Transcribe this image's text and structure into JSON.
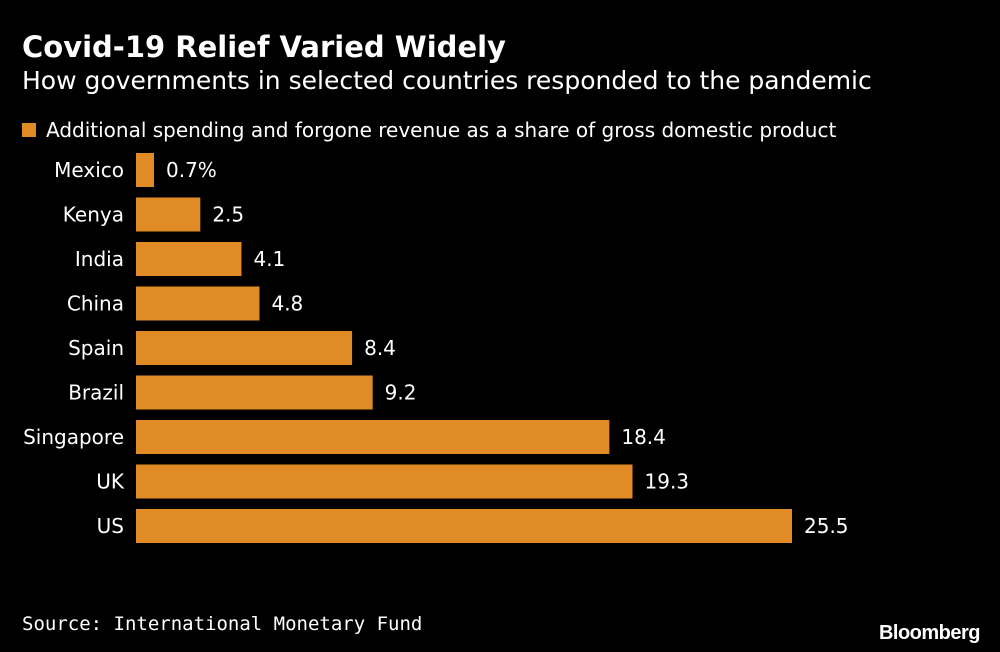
{
  "colors": {
    "background": "#000000",
    "bar": "#e08b26",
    "text": "#ffffff"
  },
  "chart_data": {
    "type": "bar",
    "orientation": "horizontal",
    "title": "Covid-19 Relief Varied Widely",
    "subtitle": "How governments in selected countries responded to the pandemic",
    "legend": {
      "position": "top-left",
      "entries": [
        "Additional spending and forgone revenue as a share of gross domestic product"
      ]
    },
    "categories": [
      "Mexico",
      "Kenya",
      "India",
      "China",
      "Spain",
      "Brazil",
      "Singapore",
      "UK",
      "US"
    ],
    "values": [
      0.7,
      2.5,
      4.1,
      4.8,
      8.4,
      9.2,
      18.4,
      19.3,
      25.5
    ],
    "data_labels": [
      "0.7%",
      "2.5",
      "4.1",
      "4.8",
      "8.4",
      "9.2",
      "18.4",
      "19.3",
      "25.5"
    ],
    "xlim": [
      0,
      25.5
    ],
    "grid": false
  },
  "source": "Source: International Monetary Fund",
  "logo": "Bloomberg"
}
